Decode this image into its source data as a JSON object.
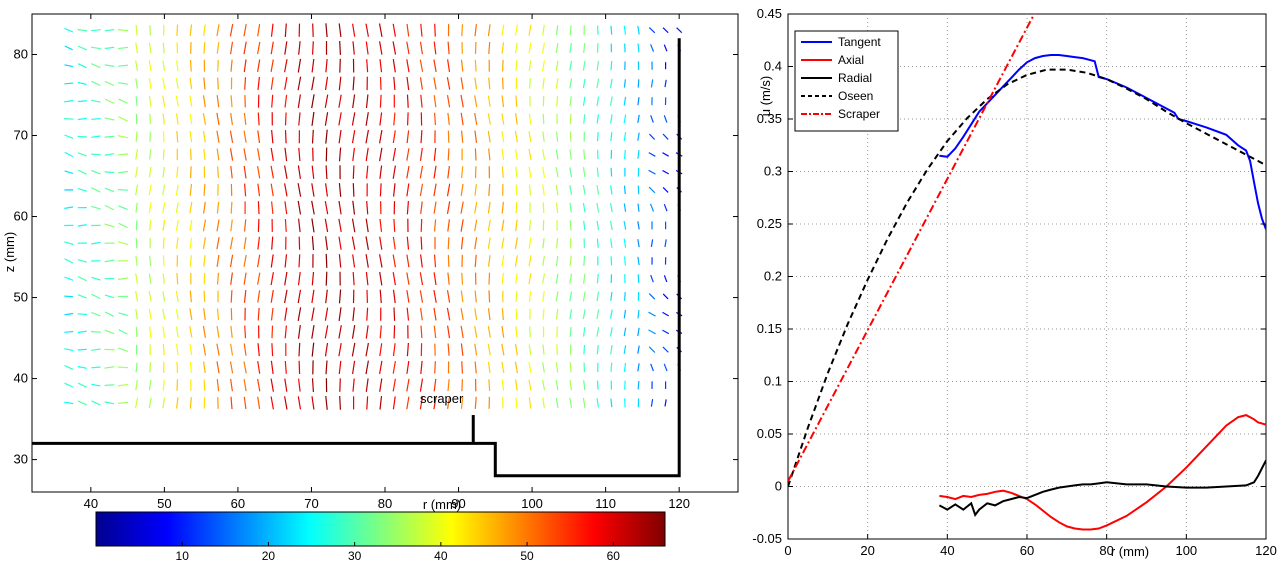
{
  "chart_data": [
    {
      "type": "vector-field",
      "xlabel": "r (mm)",
      "ylabel": "z (mm)",
      "xlim": [
        32,
        128
      ],
      "ylim": [
        26,
        85
      ],
      "xticks": [
        40,
        50,
        60,
        70,
        80,
        90,
        100,
        110,
        120
      ],
      "yticks": [
        30,
        40,
        50,
        60,
        70,
        80
      ],
      "annotation": "scraper",
      "field": {
        "r_range": [
          37,
          120
        ],
        "z_range": [
          37,
          83
        ],
        "columns": 46,
        "rows": 22,
        "magnitude_range": [
          5,
          65
        ]
      },
      "colorbar": {
        "range": [
          0,
          66
        ],
        "ticks": [
          10,
          20,
          30,
          40,
          50,
          60
        ],
        "colormap": [
          "#00008f",
          "#0000ff",
          "#00ffff",
          "#ffff00",
          "#ff0000",
          "#800000"
        ]
      },
      "geometry": {
        "wall": [
          [
            32,
            32
          ],
          [
            95,
            32
          ],
          [
            95,
            28
          ],
          [
            120,
            28
          ],
          [
            120,
            82
          ]
        ],
        "scraper": [
          [
            92,
            32
          ],
          [
            92,
            35.5
          ]
        ]
      }
    },
    {
      "type": "line",
      "xlabel": "r (mm)",
      "ylabel": "u (m/s)",
      "xlim": [
        0,
        120
      ],
      "ylim": [
        -0.05,
        0.45
      ],
      "xticks": [
        0,
        20,
        40,
        60,
        80,
        100,
        120
      ],
      "yticks": [
        -0.05,
        0,
        0.05,
        0.1,
        0.15,
        0.2,
        0.25,
        0.3,
        0.35,
        0.4,
        0.45
      ],
      "grid": true,
      "legend": "top-left",
      "series": [
        {
          "name": "Tangent",
          "color": "#0000ff",
          "style": "solid",
          "x": [
            38,
            40,
            42,
            44,
            46,
            48,
            50,
            52,
            54,
            56,
            58,
            60,
            62,
            64,
            66,
            68,
            70,
            72,
            74,
            76,
            77,
            78,
            80,
            85,
            90,
            95,
            97,
            98,
            100,
            105,
            110,
            113,
            115,
            116,
            117,
            118,
            119,
            120
          ],
          "y": [
            0.315,
            0.314,
            0.322,
            0.333,
            0.345,
            0.357,
            0.365,
            0.373,
            0.381,
            0.389,
            0.397,
            0.404,
            0.408,
            0.41,
            0.411,
            0.411,
            0.41,
            0.409,
            0.408,
            0.406,
            0.405,
            0.39,
            0.388,
            0.38,
            0.37,
            0.36,
            0.356,
            0.35,
            0.348,
            0.342,
            0.335,
            0.325,
            0.32,
            0.31,
            0.29,
            0.27,
            0.255,
            0.245
          ]
        },
        {
          "name": "Axial",
          "color": "#ff0000",
          "style": "solid",
          "x": [
            38,
            40,
            42,
            44,
            46,
            48,
            50,
            52,
            54,
            56,
            58,
            60,
            62,
            64,
            66,
            68,
            70,
            72,
            74,
            76,
            78,
            80,
            85,
            90,
            95,
            100,
            105,
            110,
            113,
            115,
            117,
            118,
            120
          ],
          "y": [
            -0.009,
            -0.01,
            -0.012,
            -0.009,
            -0.01,
            -0.008,
            -0.007,
            -0.005,
            -0.004,
            -0.006,
            -0.009,
            -0.012,
            -0.017,
            -0.023,
            -0.029,
            -0.034,
            -0.038,
            -0.04,
            -0.041,
            -0.041,
            -0.04,
            -0.037,
            -0.028,
            -0.015,
            0.0,
            0.018,
            0.038,
            0.058,
            0.066,
            0.068,
            0.064,
            0.061,
            0.059
          ]
        },
        {
          "name": "Radial",
          "color": "#000000",
          "style": "solid",
          "x": [
            38,
            40,
            42,
            44,
            46,
            47,
            48,
            50,
            52,
            54,
            56,
            58,
            60,
            62,
            64,
            66,
            68,
            70,
            72,
            74,
            76,
            78,
            80,
            85,
            90,
            95,
            100,
            105,
            110,
            115,
            117,
            118,
            120
          ],
          "y": [
            -0.018,
            -0.022,
            -0.017,
            -0.022,
            -0.016,
            -0.027,
            -0.022,
            -0.016,
            -0.018,
            -0.014,
            -0.012,
            -0.01,
            -0.011,
            -0.008,
            -0.005,
            -0.003,
            -0.001,
            0.0,
            0.001,
            0.002,
            0.002,
            0.003,
            0.004,
            0.002,
            0.002,
            0.0,
            -0.001,
            -0.001,
            0.0,
            0.001,
            0.004,
            0.01,
            0.025
          ]
        },
        {
          "name": "Oseen",
          "color": "#000000",
          "style": "dashed",
          "x": [
            0,
            5,
            10,
            15,
            20,
            25,
            30,
            35,
            40,
            45,
            50,
            55,
            60,
            65,
            70,
            75,
            80,
            85,
            90,
            95,
            100,
            105,
            110,
            115,
            120
          ],
          "y": [
            0.0,
            0.056,
            0.108,
            0.155,
            0.197,
            0.236,
            0.271,
            0.302,
            0.329,
            0.351,
            0.369,
            0.383,
            0.392,
            0.397,
            0.397,
            0.394,
            0.388,
            0.379,
            0.369,
            0.357,
            0.346,
            0.336,
            0.326,
            0.316,
            0.306
          ]
        },
        {
          "name": "Scraper",
          "color": "#ff0000",
          "style": "dash-dot",
          "x": [
            0,
            20,
            40,
            60,
            67
          ],
          "y": [
            0.005,
            0.149,
            0.293,
            0.437,
            0.487
          ]
        }
      ]
    }
  ]
}
